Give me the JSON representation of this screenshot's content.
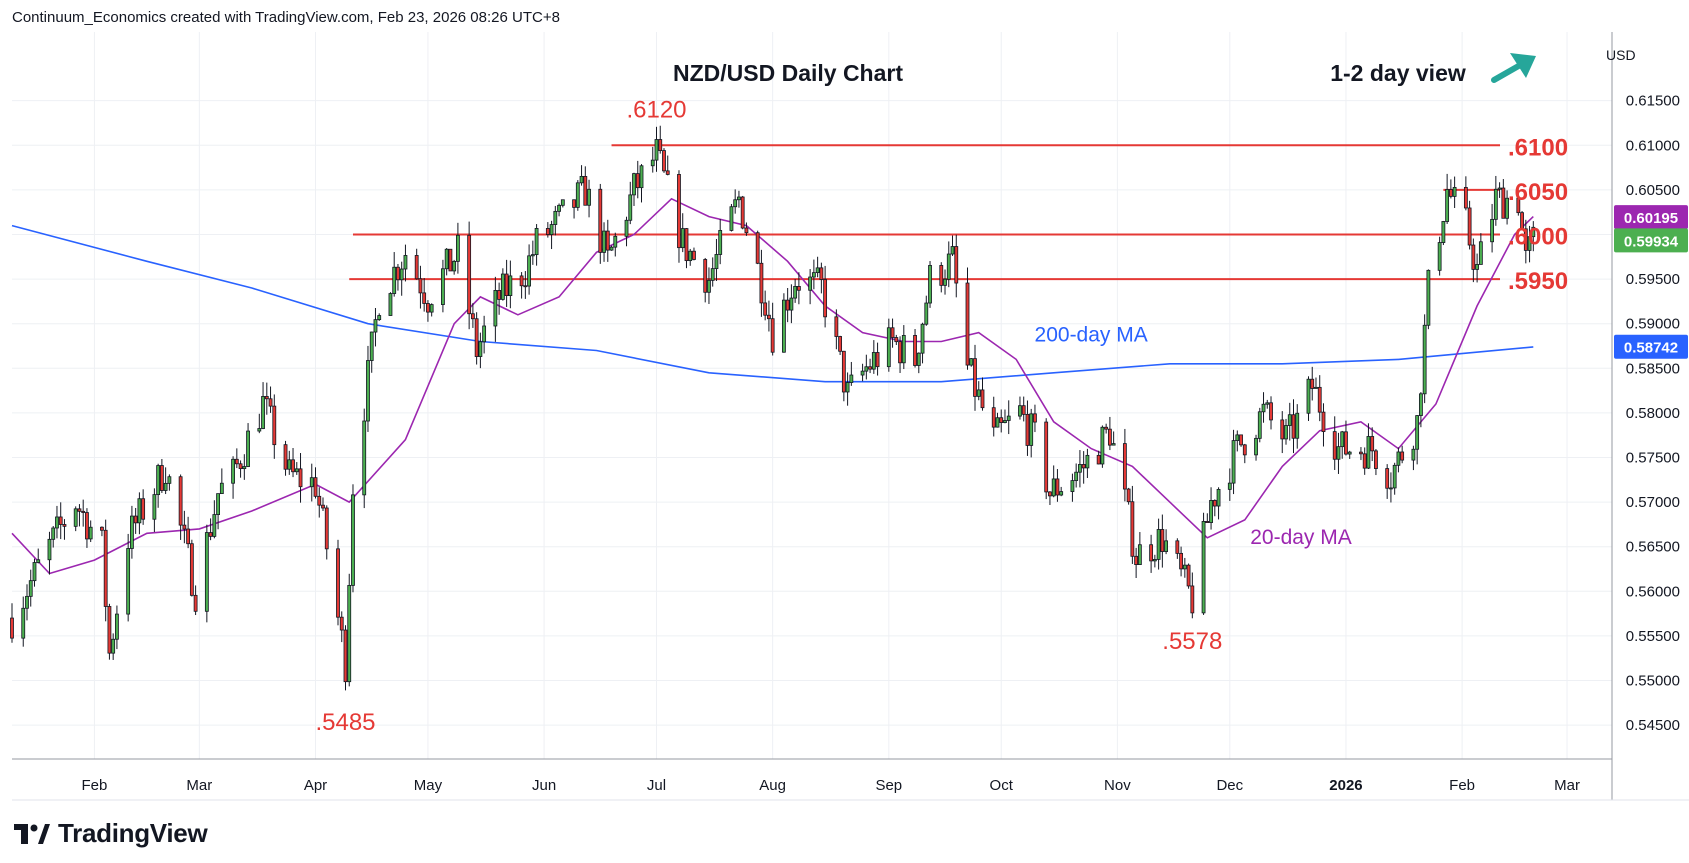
{
  "header": {
    "credit": "Continuum_Economics created with TradingView.com, Feb 23, 2026 08:26 UTC+8"
  },
  "footer": {
    "brand": "TradingView",
    "logo_icon": "tradingview-logo-icon"
  },
  "colors": {
    "up": "#4caf50",
    "down": "#e53935",
    "ma20": "#9c27b0",
    "ma200": "#2962ff",
    "level": "#e53935",
    "arrow": "#26a69a",
    "last_price_bg": "#4caf50",
    "ma20_label_bg": "#9c27b0",
    "ma200_label_bg": "#2962ff"
  },
  "chart_data": {
    "type": "candlestick",
    "title": "NZD/USD Daily Chart",
    "view": {
      "label": "1-2 day view",
      "direction_icon": "up-right-arrow-icon"
    },
    "currency": "USD",
    "ylim": [
      0.5412,
      0.6227
    ],
    "y_ticks": [
      "0.61500",
      "0.61000",
      "0.60500",
      "0.60000",
      "0.59500",
      "0.59000",
      "0.58500",
      "0.58000",
      "0.57500",
      "0.57000",
      "0.56500",
      "0.56000",
      "0.55500",
      "0.55000",
      "0.54500"
    ],
    "x_ticks": [
      "Feb",
      "Mar",
      "Apr",
      "May",
      "Jun",
      "Jul",
      "Aug",
      "Sep",
      "Oct",
      "Nov",
      "Dec",
      "2026",
      "Feb",
      "Mar"
    ],
    "levels": [
      {
        "value": 0.61,
        "label": ".6100"
      },
      {
        "value": 0.605,
        "label": ".6050"
      },
      {
        "value": 0.6,
        "label": ".6000"
      },
      {
        "value": 0.595,
        "label": ".5950"
      }
    ],
    "annotations": [
      {
        "text": ".6120",
        "value": 0.612,
        "date": "2025-07-01"
      },
      {
        "text": ".5485",
        "value": 0.5485,
        "date": "2025-04-09"
      },
      {
        "text": ".5578",
        "value": 0.5578,
        "date": "2025-11-21"
      }
    ],
    "series_labels": [
      {
        "text": "200-day MA"
      },
      {
        "text": "20-day MA"
      }
    ],
    "price_labels": [
      {
        "value": "0.60195",
        "series": "20-day MA"
      },
      {
        "value": "0.59934",
        "series": "last"
      },
      {
        "value": "0.58742",
        "series": "200-day MA"
      }
    ],
    "price_path": [
      {
        "date": "2025-01-10",
        "close": 0.557
      },
      {
        "date": "2025-01-20",
        "close": 0.565
      },
      {
        "date": "2025-01-27",
        "close": 0.57
      },
      {
        "date": "2025-02-03",
        "close": 0.565
      },
      {
        "date": "2025-02-05",
        "close": 0.553
      },
      {
        "date": "2025-02-10",
        "close": 0.566
      },
      {
        "date": "2025-02-20",
        "close": 0.574
      },
      {
        "date": "2025-02-28",
        "close": 0.56
      },
      {
        "date": "2025-03-06",
        "close": 0.571
      },
      {
        "date": "2025-03-10",
        "close": 0.573
      },
      {
        "date": "2025-03-18",
        "close": 0.581
      },
      {
        "date": "2025-03-25",
        "close": 0.573
      },
      {
        "date": "2025-04-01",
        "close": 0.572
      },
      {
        "date": "2025-04-04",
        "close": 0.565
      },
      {
        "date": "2025-04-07",
        "close": 0.557
      },
      {
        "date": "2025-04-09",
        "close": 0.552
      },
      {
        "date": "2025-04-11",
        "close": 0.572
      },
      {
        "date": "2025-04-18",
        "close": 0.593
      },
      {
        "date": "2025-04-25",
        "close": 0.598
      },
      {
        "date": "2025-05-01",
        "close": 0.593
      },
      {
        "date": "2025-05-09",
        "close": 0.598
      },
      {
        "date": "2025-05-14",
        "close": 0.587
      },
      {
        "date": "2025-05-20",
        "close": 0.593
      },
      {
        "date": "2025-05-27",
        "close": 0.596
      },
      {
        "date": "2025-05-30",
        "close": 0.599
      },
      {
        "date": "2025-06-06",
        "close": 0.602
      },
      {
        "date": "2025-06-12",
        "close": 0.605
      },
      {
        "date": "2025-06-18",
        "close": 0.597
      },
      {
        "date": "2025-06-25",
        "close": 0.605
      },
      {
        "date": "2025-07-01",
        "close": 0.609
      },
      {
        "date": "2025-07-08",
        "close": 0.599
      },
      {
        "date": "2025-07-15",
        "close": 0.595
      },
      {
        "date": "2025-07-23",
        "close": 0.604
      },
      {
        "date": "2025-07-30",
        "close": 0.593
      },
      {
        "date": "2025-08-01",
        "close": 0.589
      },
      {
        "date": "2025-08-07",
        "close": 0.595
      },
      {
        "date": "2025-08-14",
        "close": 0.594
      },
      {
        "date": "2025-08-21",
        "close": 0.582
      },
      {
        "date": "2025-08-26",
        "close": 0.585
      },
      {
        "date": "2025-09-02",
        "close": 0.588
      },
      {
        "date": "2025-09-08",
        "close": 0.586
      },
      {
        "date": "2025-09-12",
        "close": 0.595
      },
      {
        "date": "2025-09-18",
        "close": 0.597
      },
      {
        "date": "2025-09-22",
        "close": 0.585
      },
      {
        "date": "2025-09-29",
        "close": 0.577
      },
      {
        "date": "2025-10-06",
        "close": 0.58
      },
      {
        "date": "2025-10-10",
        "close": 0.577
      },
      {
        "date": "2025-10-14",
        "close": 0.571
      },
      {
        "date": "2025-10-23",
        "close": 0.574
      },
      {
        "date": "2025-10-30",
        "close": 0.578
      },
      {
        "date": "2025-11-06",
        "close": 0.564
      },
      {
        "date": "2025-11-13",
        "close": 0.566
      },
      {
        "date": "2025-11-21",
        "close": 0.559
      },
      {
        "date": "2025-11-26",
        "close": 0.57
      },
      {
        "date": "2025-12-03",
        "close": 0.576
      },
      {
        "date": "2025-12-10",
        "close": 0.58
      },
      {
        "date": "2025-12-16",
        "close": 0.577
      },
      {
        "date": "2025-12-19",
        "close": 0.579
      },
      {
        "date": "2025-12-23",
        "close": 0.583
      },
      {
        "date": "2025-12-30",
        "close": 0.576
      },
      {
        "date": "2026-01-08",
        "close": 0.576
      },
      {
        "date": "2026-01-13",
        "close": 0.573
      },
      {
        "date": "2026-01-20",
        "close": 0.579
      },
      {
        "date": "2026-01-23",
        "close": 0.594
      },
      {
        "date": "2026-01-28",
        "close": 0.605
      },
      {
        "date": "2026-02-02",
        "close": 0.601
      },
      {
        "date": "2026-02-05",
        "close": 0.596
      },
      {
        "date": "2026-02-10",
        "close": 0.604
      },
      {
        "date": "2026-02-16",
        "close": 0.604
      },
      {
        "date": "2026-02-18",
        "close": 0.597
      },
      {
        "date": "2026-02-20",
        "close": 0.5993
      }
    ],
    "ma20_path": [
      {
        "date": "2025-01-10",
        "value": 0.5665
      },
      {
        "date": "2025-01-20",
        "value": 0.562
      },
      {
        "date": "2025-02-01",
        "value": 0.5635
      },
      {
        "date": "2025-02-15",
        "value": 0.5665
      },
      {
        "date": "2025-03-01",
        "value": 0.567
      },
      {
        "date": "2025-03-15",
        "value": 0.569
      },
      {
        "date": "2025-04-01",
        "value": 0.572
      },
      {
        "date": "2025-04-10",
        "value": 0.57
      },
      {
        "date": "2025-04-25",
        "value": 0.577
      },
      {
        "date": "2025-05-08",
        "value": 0.59
      },
      {
        "date": "2025-05-15",
        "value": 0.593
      },
      {
        "date": "2025-05-25",
        "value": 0.591
      },
      {
        "date": "2025-06-05",
        "value": 0.593
      },
      {
        "date": "2025-06-15",
        "value": 0.598
      },
      {
        "date": "2025-06-25",
        "value": 0.6
      },
      {
        "date": "2025-07-05",
        "value": 0.604
      },
      {
        "date": "2025-07-15",
        "value": 0.602
      },
      {
        "date": "2025-07-25",
        "value": 0.601
      },
      {
        "date": "2025-08-05",
        "value": 0.597
      },
      {
        "date": "2025-08-15",
        "value": 0.592
      },
      {
        "date": "2025-08-25",
        "value": 0.589
      },
      {
        "date": "2025-09-05",
        "value": 0.588
      },
      {
        "date": "2025-09-15",
        "value": 0.588
      },
      {
        "date": "2025-09-25",
        "value": 0.589
      },
      {
        "date": "2025-10-05",
        "value": 0.586
      },
      {
        "date": "2025-10-15",
        "value": 0.579
      },
      {
        "date": "2025-10-25",
        "value": 0.576
      },
      {
        "date": "2025-11-05",
        "value": 0.574
      },
      {
        "date": "2025-11-15",
        "value": 0.57
      },
      {
        "date": "2025-11-25",
        "value": 0.566
      },
      {
        "date": "2025-12-05",
        "value": 0.568
      },
      {
        "date": "2025-12-15",
        "value": 0.574
      },
      {
        "date": "2025-12-25",
        "value": 0.578
      },
      {
        "date": "2026-01-05",
        "value": 0.579
      },
      {
        "date": "2026-01-15",
        "value": 0.576
      },
      {
        "date": "2026-01-25",
        "value": 0.581
      },
      {
        "date": "2026-02-05",
        "value": 0.592
      },
      {
        "date": "2026-02-15",
        "value": 0.6
      },
      {
        "date": "2026-02-20",
        "value": 0.602
      }
    ],
    "ma200_path": [
      {
        "date": "2025-01-10",
        "value": 0.601
      },
      {
        "date": "2025-02-15",
        "value": 0.597
      },
      {
        "date": "2025-03-15",
        "value": 0.594
      },
      {
        "date": "2025-04-15",
        "value": 0.59
      },
      {
        "date": "2025-05-15",
        "value": 0.588
      },
      {
        "date": "2025-06-15",
        "value": 0.587
      },
      {
        "date": "2025-07-15",
        "value": 0.5845
      },
      {
        "date": "2025-08-15",
        "value": 0.5835
      },
      {
        "date": "2025-09-15",
        "value": 0.5835
      },
      {
        "date": "2025-10-15",
        "value": 0.5845
      },
      {
        "date": "2025-11-15",
        "value": 0.5855
      },
      {
        "date": "2025-12-15",
        "value": 0.5855
      },
      {
        "date": "2026-01-15",
        "value": 0.586
      },
      {
        "date": "2026-02-20",
        "value": 0.5874
      }
    ]
  }
}
